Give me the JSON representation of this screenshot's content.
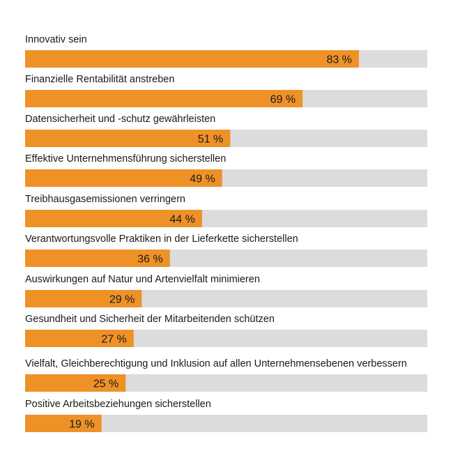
{
  "colors": {
    "bar": "#ee9228",
    "track": "#dcdcdc",
    "text": "#1a1a1a",
    "background": "#ffffff"
  },
  "chart_data": {
    "type": "bar",
    "orientation": "horizontal",
    "title": "",
    "xlabel": "",
    "ylabel": "",
    "xlim": [
      0,
      100
    ],
    "grid": false,
    "unit": "%",
    "categories": [
      "Innovativ sein",
      "Finanzielle Rentabilität anstreben",
      "Datensicherheit und -schutz gewährleisten",
      "Effektive Unternehmensführung sicherstellen",
      "Treibhausgasemissionen verringern",
      "Verantwortungsvolle Praktiken in der Lieferkette sicherstellen",
      "Auswirkungen auf Natur und Artenvielfalt minimieren",
      "Gesundheit und Sicherheit der Mitarbeitenden schützen",
      "Vielfalt, Gleichberechtigung und Inklusion auf allen Unternehmensebenen verbessern",
      "Positive Arbeitsbeziehungen sicherstellen"
    ],
    "values": [
      83,
      69,
      51,
      49,
      44,
      36,
      29,
      27,
      25,
      19
    ],
    "value_labels": [
      "83 %",
      "69 %",
      "51 %",
      "49 %",
      "44 %",
      "36 %",
      "29 %",
      "27 %",
      "25 %",
      "19 %"
    ]
  }
}
